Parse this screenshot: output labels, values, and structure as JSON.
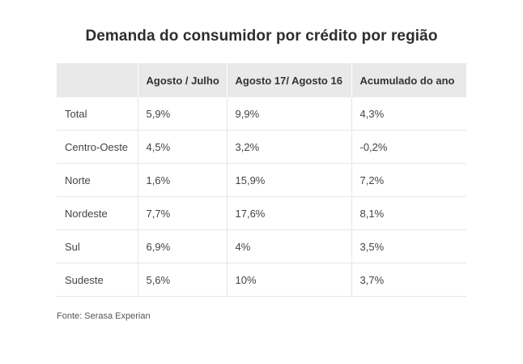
{
  "chart_data": {
    "type": "table",
    "title": "Demanda do consumidor por crédito por região",
    "columns": [
      "",
      "Agosto / Julho",
      "Agosto 17/ Agosto 16",
      "Acumulado do ano"
    ],
    "rows": [
      {
        "region": "Total",
        "values": [
          "5,9%",
          "9,9%",
          "4,3%"
        ]
      },
      {
        "region": "Centro-Oeste",
        "values": [
          "4,5%",
          "3,2%",
          "-0,2%"
        ]
      },
      {
        "region": "Norte",
        "values": [
          "1,6%",
          "15,9%",
          "7,2%"
        ]
      },
      {
        "region": "Nordeste",
        "values": [
          "7,7%",
          "17,6%",
          "8,1%"
        ]
      },
      {
        "region": "Sul",
        "values": [
          "6,9%",
          "4%",
          "3,5%"
        ]
      },
      {
        "region": "Sudeste",
        "values": [
          "5,6%",
          "10%",
          "3,7%"
        ]
      }
    ],
    "source": "Fonte: Serasa Experian"
  },
  "colors": {
    "header_background": "#e9e9e9",
    "row_divider": "#e6e6e6",
    "text": "#333333"
  }
}
